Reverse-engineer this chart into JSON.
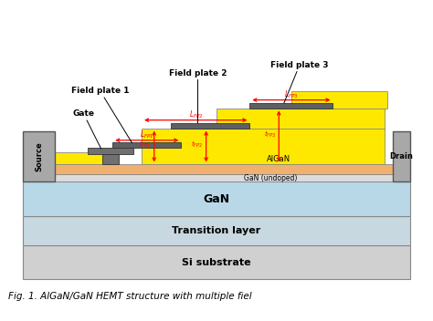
{
  "figsize": [
    4.74,
    3.52
  ],
  "dpi": 100,
  "bg_color": "#ffffff",
  "caption": "Fig. 1. AlGaN/GaN HEMT structure with multiple fiel",
  "colors": {
    "yellow": "#FFE800",
    "orange_algaN": "#F0B070",
    "gan_undoped": "#DCDCDC",
    "gan_blue": "#B8D8E8",
    "transition": "#C8D8E0",
    "si_substrate": "#D0D0D0",
    "dark_gray": "#606060",
    "source_drain": "#A8A8A8",
    "gate_gray": "#707070",
    "red": "#FF0000",
    "black": "#000000",
    "border": "#888888"
  },
  "labels": {
    "field_plate_1": "Field plate 1",
    "field_plate_2": "Field plate 2",
    "field_plate_3": "Field plate 3",
    "gate": "Gate",
    "source": "Source",
    "drain": "Drain",
    "AlGaN": "AlGaN",
    "GaN_undoped": "GaN (undoped)",
    "GaN": "GaN",
    "transition": "Transition layer",
    "Si": "Si substrate"
  }
}
